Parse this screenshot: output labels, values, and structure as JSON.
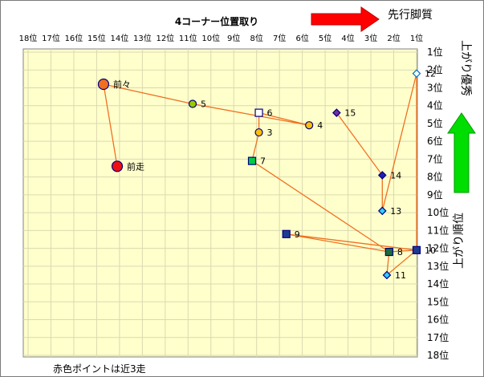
{
  "chart_data": {
    "type": "scatter",
    "title": "4コーナー位置取り",
    "x_ticks": [
      "18位",
      "17位",
      "16位",
      "15位",
      "14位",
      "13位",
      "12位",
      "11位",
      "10位",
      "9位",
      "8位",
      "7位",
      "6位",
      "5位",
      "4位",
      "3位",
      "2位",
      "1位"
    ],
    "y_ticks": [
      "1位",
      "2位",
      "3位",
      "4位",
      "5位",
      "6位",
      "7位",
      "8位",
      "9位",
      "10位",
      "11位",
      "12位",
      "13位",
      "14位",
      "15位",
      "16位",
      "17位",
      "18位"
    ],
    "xlim": [
      18,
      1
    ],
    "ylim": [
      1,
      18
    ],
    "grid": true,
    "top_arrow_label": "先行脚質",
    "right_top_label": "上がり優秀",
    "right_bottom_label": "上がり順位",
    "footnote": "赤色ポイントは近3走",
    "colors": {
      "background": "#ffffcc",
      "grid": "#d9d9b0",
      "line": "#f07020",
      "arrow_red": "#ff0000",
      "arrow_green": "#00dd00"
    },
    "points": [
      {
        "label": "前走",
        "x": 14.1,
        "y": 7.4,
        "marker": "circle",
        "size": "large",
        "fill": "#ee1111",
        "stroke": "#000080"
      },
      {
        "label": "前々",
        "x": 14.7,
        "y": 2.8,
        "marker": "circle",
        "size": "large",
        "fill": "#f07020",
        "stroke": "#000080"
      },
      {
        "label": "5",
        "x": 10.8,
        "y": 3.9,
        "marker": "circle",
        "size": "small",
        "fill": "#99cc00",
        "stroke": "#000080"
      },
      {
        "label": "6",
        "x": 7.9,
        "y": 4.4,
        "marker": "square",
        "size": "small",
        "fill": "#ffffff",
        "stroke": "#000080"
      },
      {
        "label": "3",
        "x": 7.9,
        "y": 5.5,
        "marker": "circle",
        "size": "small",
        "fill": "#ffc000",
        "stroke": "#000080"
      },
      {
        "label": "4",
        "x": 5.7,
        "y": 5.1,
        "marker": "circle",
        "size": "small",
        "fill": "#ffc000",
        "stroke": "#000080"
      },
      {
        "label": "15",
        "x": 4.5,
        "y": 4.4,
        "marker": "diamond",
        "size": "small",
        "fill": "#7030a0",
        "stroke": "#000080"
      },
      {
        "label": "7",
        "x": 8.2,
        "y": 7.1,
        "marker": "square",
        "size": "small",
        "fill": "#00cc44",
        "stroke": "#000080"
      },
      {
        "label": "14",
        "x": 2.5,
        "y": 7.9,
        "marker": "diamond",
        "size": "small",
        "fill": "#2020b0",
        "stroke": "#000080"
      },
      {
        "label": "13",
        "x": 2.5,
        "y": 9.9,
        "marker": "diamond",
        "size": "small",
        "fill": "#33ccff",
        "stroke": "#000080"
      },
      {
        "label": "12",
        "x": 1.0,
        "y": 2.2,
        "marker": "diamond",
        "size": "small",
        "fill": "#ffffff",
        "stroke": "#0070c0"
      },
      {
        "label": "9",
        "x": 6.7,
        "y": 11.2,
        "marker": "square",
        "size": "small",
        "fill": "#1f3a93",
        "stroke": "#000080"
      },
      {
        "label": "8",
        "x": 2.2,
        "y": 12.2,
        "marker": "square",
        "size": "small",
        "fill": "#1f6b3a",
        "stroke": "#000080"
      },
      {
        "label": "10",
        "x": 1.0,
        "y": 12.1,
        "marker": "square",
        "size": "small",
        "fill": "#1f3a93",
        "stroke": "#000080"
      },
      {
        "label": "11",
        "x": 2.3,
        "y": 13.5,
        "marker": "diamond",
        "size": "small",
        "fill": "#33ccff",
        "stroke": "#000080"
      }
    ],
    "path_order": [
      "前走",
      "前々",
      "5",
      "4",
      "6",
      "3",
      "7",
      "8",
      "10",
      "9",
      "8",
      "11",
      "10",
      "12",
      "13",
      "14",
      "15"
    ]
  }
}
